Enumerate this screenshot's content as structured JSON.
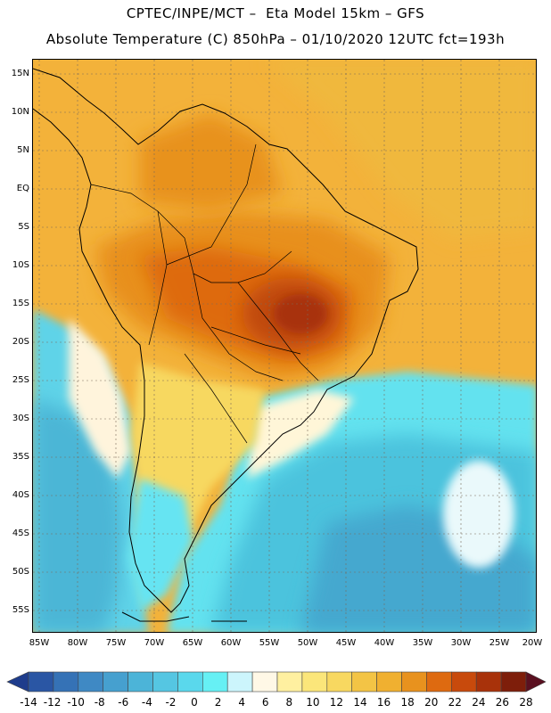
{
  "header": {
    "title1": "CPTEC/INPE/MCT –  Eta Model 15km – GFS",
    "title2": "Absolute Temperature (C) 850hPa – 01/10/2020 12UTC fct=193h"
  },
  "map": {
    "lat_labels": [
      "15N",
      "10N",
      "5N",
      "EQ",
      "5S",
      "10S",
      "15S",
      "20S",
      "25S",
      "30S",
      "35S",
      "40S",
      "45S",
      "50S",
      "55S"
    ],
    "lon_labels": [
      "85W",
      "80W",
      "75W",
      "70W",
      "65W",
      "60W",
      "55W",
      "50W",
      "45W",
      "40W",
      "35W",
      "30W",
      "25W",
      "20W"
    ],
    "lat_range": [
      17,
      -58
    ],
    "lon_range": [
      -86,
      -20
    ]
  },
  "colorbar": {
    "tick_labels": [
      "-14",
      "-12",
      "-10",
      "-8",
      "-6",
      "-4",
      "-2",
      "0",
      "2",
      "4",
      "6",
      "8",
      "10",
      "12",
      "14",
      "16",
      "18",
      "20",
      "22",
      "24",
      "26",
      "28"
    ],
    "colors": [
      "#1e3c8c",
      "#2a56a4",
      "#3572b6",
      "#3f89c4",
      "#46a0cf",
      "#4cb4d8",
      "#55c6e2",
      "#5ad8ec",
      "#66f0f4",
      "#ccf5fc",
      "#fff8e6",
      "#fff0a0",
      "#fbe67a",
      "#f8d860",
      "#f3c445",
      "#f0b030",
      "#e8921e",
      "#de6a10",
      "#c84a0c",
      "#a8320a",
      "#7e1e0a",
      "#5a1020"
    ]
  }
}
